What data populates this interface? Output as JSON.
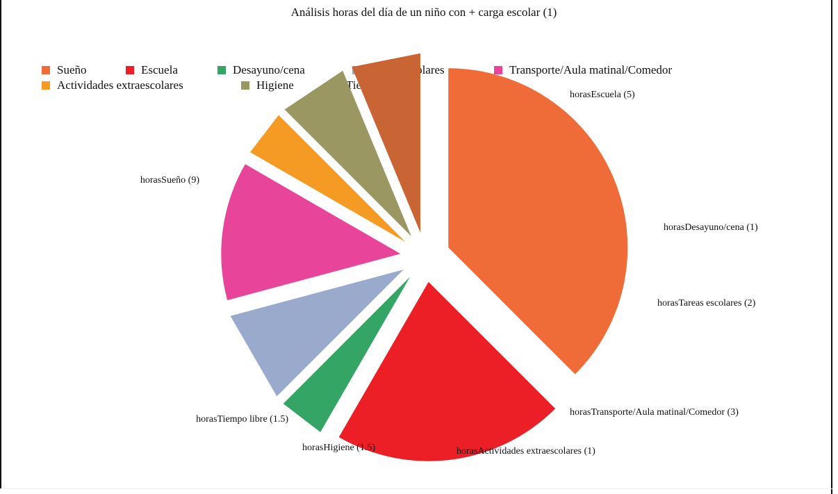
{
  "chart_data": {
    "type": "pie",
    "title": "Análisis horas del día de un niño con + carga escolar (1)",
    "exploded": true,
    "legend_position": "top-left",
    "unit": "horas",
    "slices": [
      {
        "legend": "Sueño",
        "label": "horasSueño (9)",
        "value": 9,
        "color": "#ef6b38"
      },
      {
        "legend": "Escuela",
        "label": "horasEscuela (5)",
        "value": 5,
        "color": "#ec1f27"
      },
      {
        "legend": "Desayuno/cena",
        "label": "horasDesayuno/cena (1)",
        "value": 1,
        "color": "#34a565"
      },
      {
        "legend": "Tareas escolares",
        "label": "horasTareas escolares (2)",
        "value": 2,
        "color": "#99aacd"
      },
      {
        "legend": "Transporte/Aula matinal/Comedor",
        "label": "horasTransporte/Aula matinal/Comedor (3)",
        "value": 3,
        "color": "#e8449a"
      },
      {
        "legend": "Actividades extraescolares",
        "label": "horasActividades extraescolares (1)",
        "value": 1,
        "color": "#f59b24"
      },
      {
        "legend": "Higiene",
        "label": "horasHigiene (1.5)",
        "value": 1.5,
        "color": "#9b9762"
      },
      {
        "legend": "Tiempo libre",
        "label": "horasTiempo libre (1.5)",
        "value": 1.5,
        "color": "#c96534"
      }
    ]
  }
}
